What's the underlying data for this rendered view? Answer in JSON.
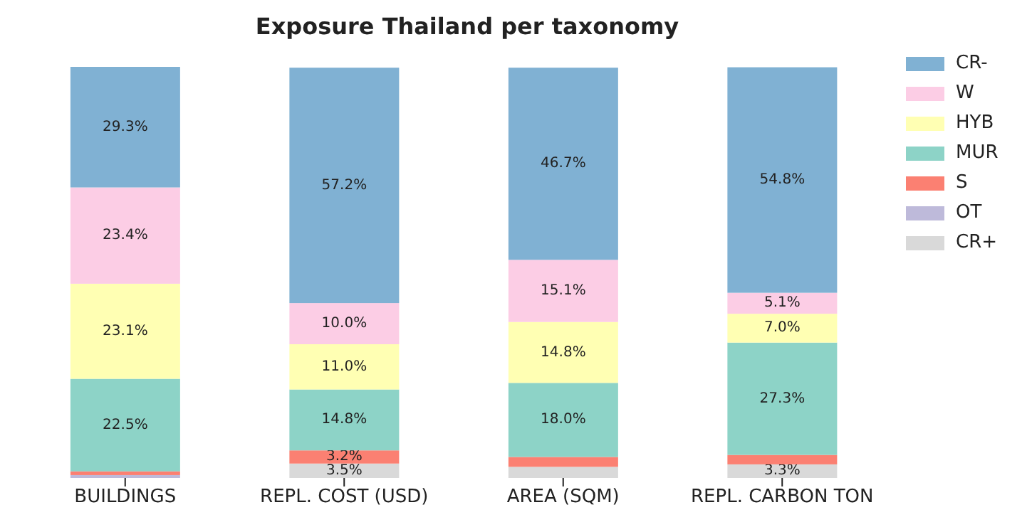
{
  "chart_data": {
    "type": "bar",
    "title": "Exposure Thailand per taxonomy",
    "categories": [
      "BUILDINGS",
      "REPL. COST (USD)",
      "AREA (SQM)",
      "REPL. CARBON TON"
    ],
    "stacked": true,
    "legend": "top right",
    "series": [
      {
        "name": "CR+",
        "color": "#d9d9d9",
        "values": [
          null,
          3.5,
          2.7,
          3.3
        ],
        "value_labels": [
          null,
          "3.5%",
          null,
          "3.3%"
        ]
      },
      {
        "name": "OT",
        "color": "#bebada",
        "values": [
          0.7,
          null,
          null,
          null
        ],
        "value_labels": [
          null,
          null,
          null,
          null
        ]
      },
      {
        "name": "S",
        "color": "#fb8072",
        "values": [
          0.9,
          3.2,
          2.4,
          2.3
        ],
        "value_labels": [
          null,
          "3.2%",
          null,
          null
        ]
      },
      {
        "name": "MUR",
        "color": "#8dd3c7",
        "values": [
          22.5,
          14.8,
          18.0,
          27.3
        ],
        "value_labels": [
          "22.5%",
          "14.8%",
          "18.0%",
          "27.3%"
        ]
      },
      {
        "name": "HYB",
        "color": "#ffffb3",
        "values": [
          23.1,
          11.0,
          14.8,
          7.0
        ],
        "value_labels": [
          "23.1%",
          "11.0%",
          "14.8%",
          "7.0%"
        ]
      },
      {
        "name": "W",
        "color": "#fccde5",
        "values": [
          23.4,
          10.0,
          15.1,
          5.1
        ],
        "value_labels": [
          "23.4%",
          "10.0%",
          "15.1%",
          "5.1%"
        ]
      },
      {
        "name": "CR-",
        "color": "#80b1d3",
        "values": [
          29.3,
          57.2,
          46.7,
          54.8
        ],
        "value_labels": [
          "29.3%",
          "57.2%",
          "46.7%",
          "54.8%"
        ]
      }
    ]
  }
}
